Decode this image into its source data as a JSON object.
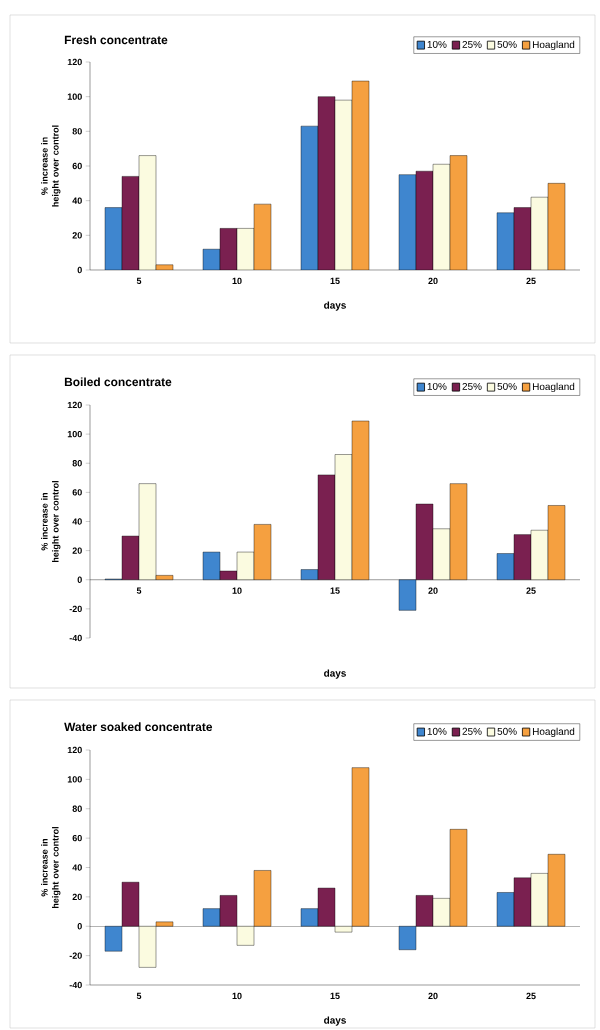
{
  "chart_data": [
    {
      "type": "bar",
      "title": "Fresh concentrate",
      "xlabel": "days",
      "ylabel": "% increase in height over control",
      "categories": [
        "5",
        "10",
        "15",
        "20",
        "25"
      ],
      "ylim": [
        0,
        120
      ],
      "yticks": [
        0,
        20,
        40,
        60,
        80,
        100,
        120
      ],
      "legend": "top right",
      "series": [
        {
          "name": "10%",
          "color": "#3f86cf",
          "values": [
            36,
            12,
            83,
            55,
            33
          ]
        },
        {
          "name": "25%",
          "color": "#7a2050",
          "values": [
            54,
            24,
            100,
            57,
            36
          ]
        },
        {
          "name": "50%",
          "color": "#fbfbe0",
          "values": [
            66,
            24,
            98,
            61,
            42
          ]
        },
        {
          "name": "Hoagland",
          "color": "#f5a040",
          "values": [
            3,
            38,
            109,
            66,
            50
          ]
        }
      ]
    },
    {
      "type": "bar",
      "title": "Boiled concentrate",
      "xlabel": "days",
      "ylabel": "% increase in height over control",
      "categories": [
        "5",
        "10",
        "15",
        "20",
        "25"
      ],
      "ylim": [
        -40,
        120
      ],
      "yticks": [
        -40,
        -20,
        0,
        20,
        40,
        60,
        80,
        100,
        120
      ],
      "legend": "top right",
      "series": [
        {
          "name": "10%",
          "color": "#3f86cf",
          "values": [
            0.5,
            19,
            7,
            -21,
            18
          ]
        },
        {
          "name": "25%",
          "color": "#7a2050",
          "values": [
            30,
            6,
            72,
            52,
            31
          ]
        },
        {
          "name": "50%",
          "color": "#fbfbe0",
          "values": [
            66,
            19,
            86,
            35,
            34
          ]
        },
        {
          "name": "Hoagland",
          "color": "#f5a040",
          "values": [
            3,
            38,
            109,
            66,
            51
          ]
        }
      ]
    },
    {
      "type": "bar",
      "title": "Water soaked concentrate",
      "xlabel": "days",
      "ylabel": "% increase in height over control",
      "categories": [
        "5",
        "10",
        "15",
        "20",
        "25"
      ],
      "ylim": [
        -40,
        120
      ],
      "yticks": [
        -40,
        -20,
        0,
        20,
        40,
        60,
        80,
        100,
        120
      ],
      "legend": "top right",
      "series": [
        {
          "name": "10%",
          "color": "#3f86cf",
          "values": [
            -17,
            12,
            12,
            -16,
            23
          ]
        },
        {
          "name": "25%",
          "color": "#7a2050",
          "values": [
            30,
            21,
            26,
            21,
            33
          ]
        },
        {
          "name": "50%",
          "color": "#fbfbe0",
          "values": [
            -28,
            -13,
            -4,
            19,
            36
          ]
        },
        {
          "name": "Hoagland",
          "color": "#f5a040",
          "values": [
            3,
            38,
            108,
            66,
            49
          ]
        }
      ]
    }
  ]
}
